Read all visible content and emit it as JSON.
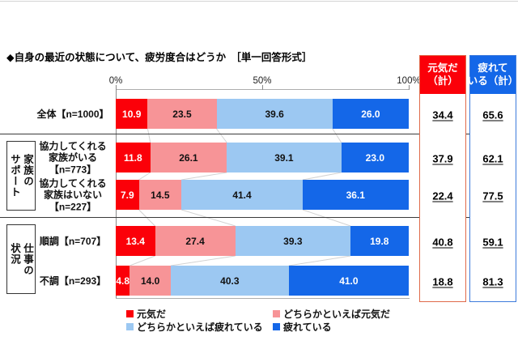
{
  "chart_data": {
    "type": "bar",
    "orientation": "horizontal",
    "stacked": true,
    "title": "◆自身の最近の状態について、疲労度合はどうか　［単一回答形式］",
    "unit": "%",
    "x_axis": {
      "ticks": [
        "0%",
        "50%",
        "100%"
      ],
      "range": [
        0,
        100
      ],
      "grid": false
    },
    "legend_position": "bottom",
    "series_labels": [
      "元気だ",
      "どちらかといえば元気だ",
      "どちらかといえば疲れている",
      "疲れている"
    ],
    "series_colors": [
      "#fb0009",
      "#f79497",
      "#9cc8f2",
      "#1467e8"
    ],
    "categories": [
      "全体【n=1000】",
      "協力してくれる家族がいる【n=773】",
      "協力してくれる家族はいない【n=227】",
      "順調【n=707】",
      "不調【n=293】"
    ],
    "rows": [
      {
        "label_lines": [
          "全体【n=1000】"
        ],
        "values": [
          10.9,
          23.5,
          39.6,
          26.0
        ]
      },
      {
        "label_lines": [
          "協力してくれる",
          "家族がいる",
          "【n=773】"
        ],
        "values": [
          11.8,
          26.1,
          39.1,
          23.0
        ]
      },
      {
        "label_lines": [
          "協力してくれる",
          "家族はいない",
          "【n=227】"
        ],
        "values": [
          7.9,
          14.5,
          41.4,
          36.1
        ]
      },
      {
        "label_lines": [
          "順調【n=707】"
        ],
        "values": [
          13.4,
          27.4,
          39.3,
          19.8
        ]
      },
      {
        "label_lines": [
          "不調【n=293】"
        ],
        "values": [
          4.8,
          14.0,
          40.3,
          41.0
        ]
      }
    ],
    "row_groups": [
      {
        "label": "家族のサポート",
        "label_lines": [
          "家族の",
          "サポート"
        ],
        "row_indexes": [
          1,
          2
        ]
      },
      {
        "label": "仕事の状況",
        "label_lines": [
          "仕事の",
          "状況"
        ],
        "row_indexes": [
          3,
          4
        ]
      }
    ],
    "summary_columns": [
      {
        "header": "元気だ（計）",
        "header_lines": [
          "元気だ",
          "（計）"
        ],
        "fill_color": "#fb0009",
        "border_color": "#e06a4a",
        "values": [
          34.4,
          37.9,
          22.4,
          40.8,
          18.8
        ]
      },
      {
        "header": "疲れている（計）",
        "header_lines": [
          "疲れて",
          "いる（計）"
        ],
        "fill_color": "#1467e8",
        "border_color": "#3d7bdc",
        "values": [
          65.6,
          62.1,
          77.5,
          59.1,
          81.3
        ]
      }
    ]
  }
}
